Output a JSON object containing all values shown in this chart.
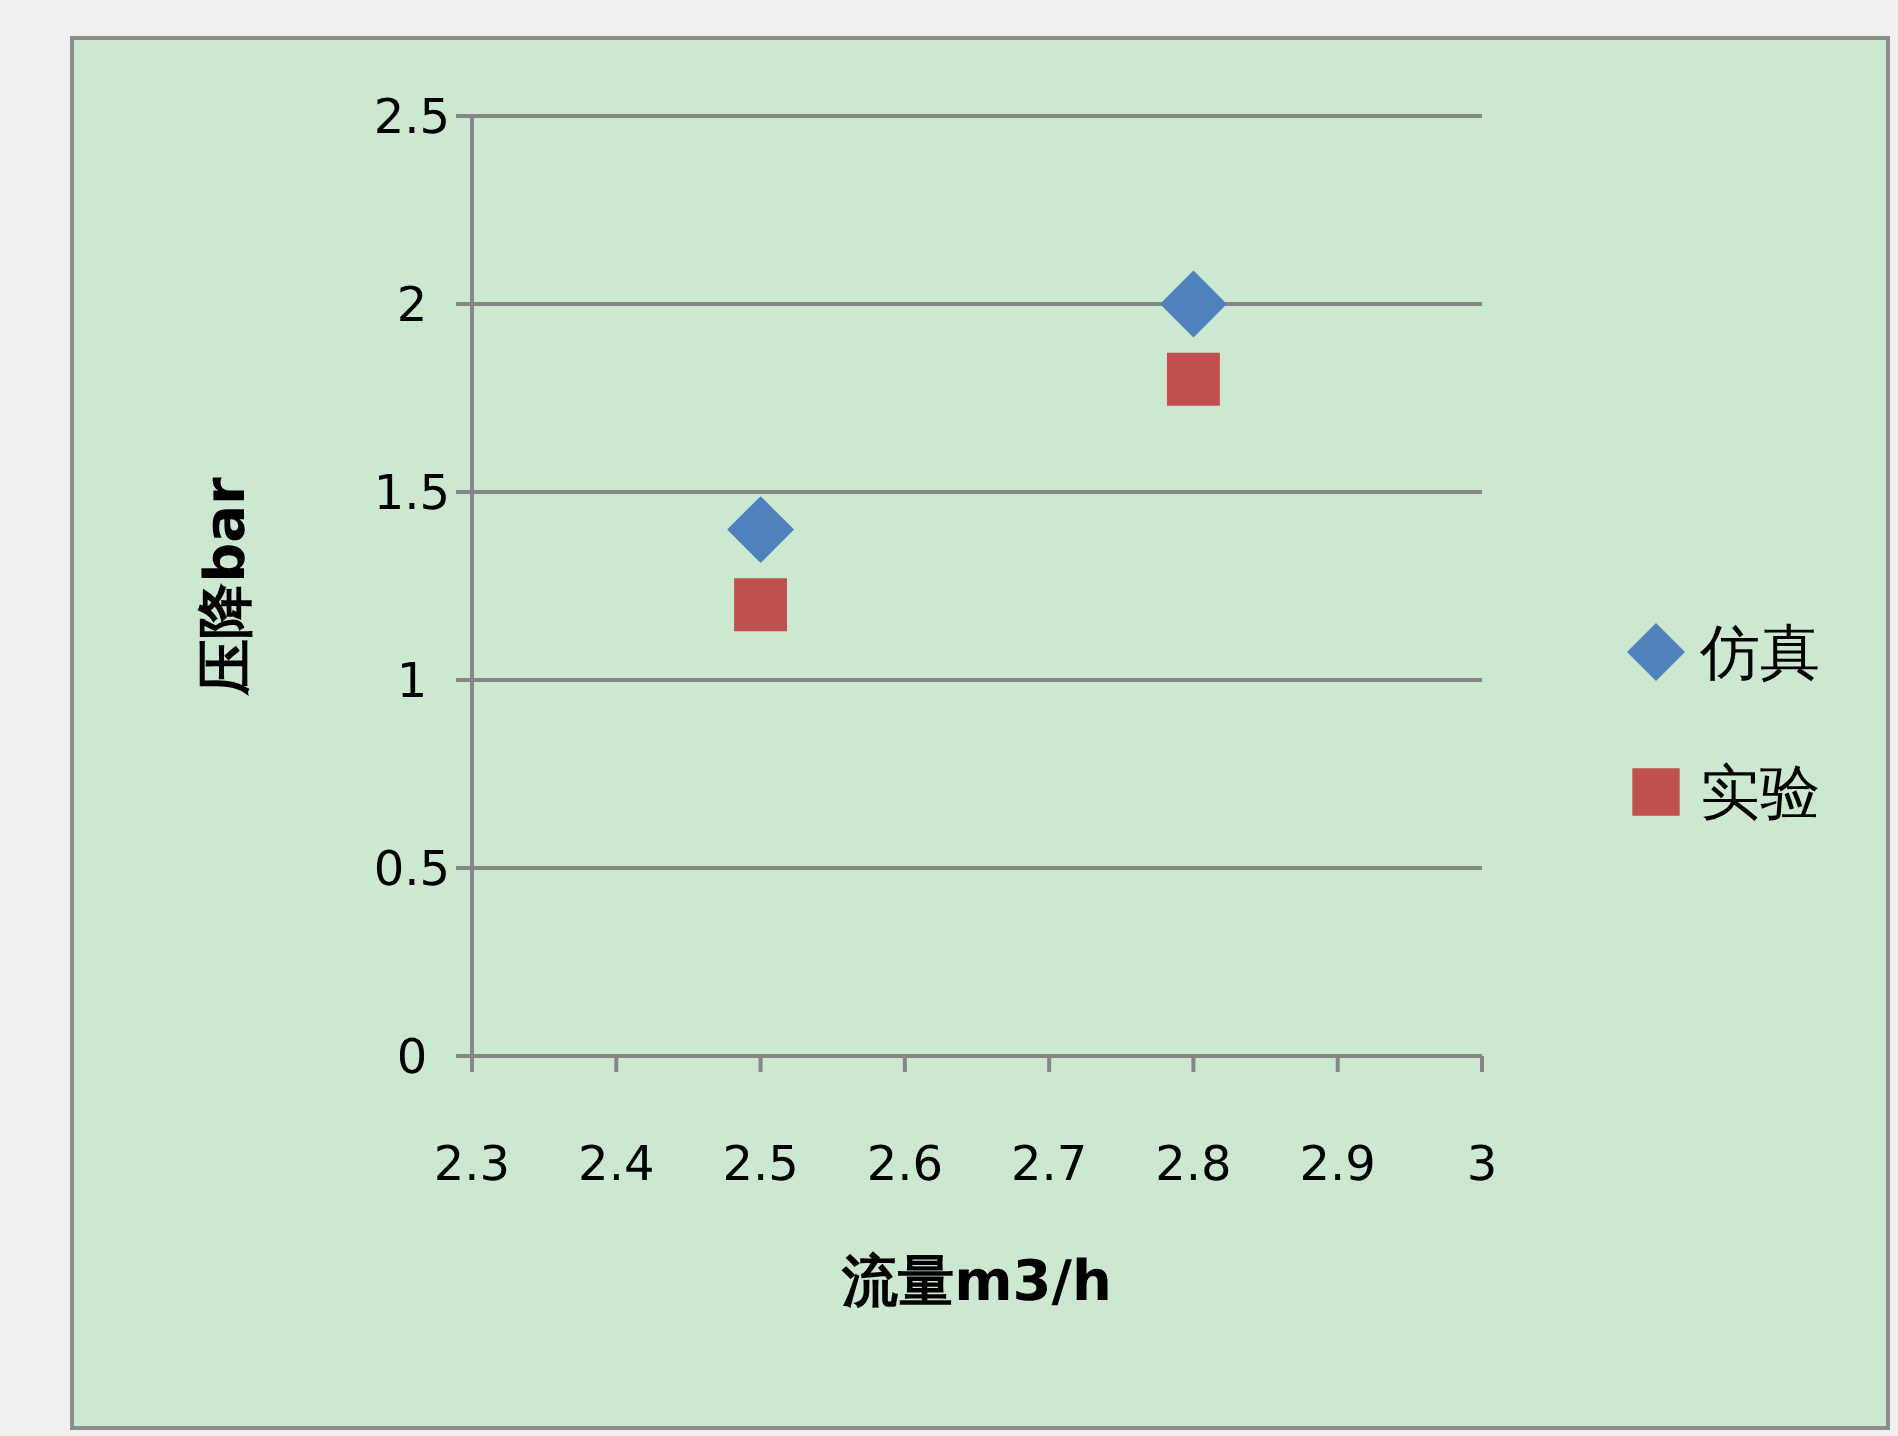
{
  "chart_data": {
    "type": "scatter",
    "xlabel": "流量m3/h",
    "ylabel": "压降bar",
    "x": [
      2.5,
      2.8
    ],
    "xlim": [
      2.3,
      3
    ],
    "xticks": [
      2.3,
      2.4,
      2.5,
      2.6,
      2.7,
      2.8,
      2.9,
      3
    ],
    "ylim": [
      0,
      2.5
    ],
    "yticks": [
      0,
      0.5,
      1,
      1.5,
      2,
      2.5
    ],
    "grid": "y",
    "legend": "right",
    "series": [
      {
        "name": "仿真",
        "color": "#4f81bd",
        "marker": "diamond",
        "values": [
          1.4,
          2.0
        ]
      },
      {
        "name": "实验",
        "color": "#c0504d",
        "marker": "square",
        "values": [
          1.2,
          1.8
        ]
      }
    ]
  }
}
